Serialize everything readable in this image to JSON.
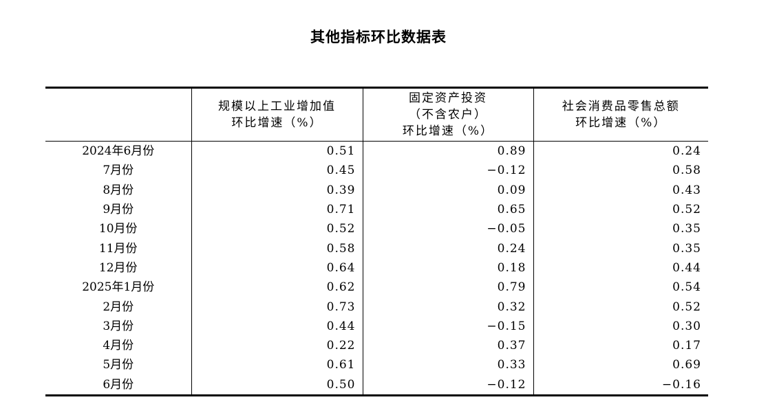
{
  "title": "其他指标环比数据表",
  "headers": [
    {
      "lines": [
        ""
      ]
    },
    {
      "lines": [
        "规模以上工业增加值",
        "环比增速（%）"
      ]
    },
    {
      "lines": [
        "固定资产投资",
        "（不含农户）",
        "环比增速（%）"
      ]
    },
    {
      "lines": [
        "社会消费品零售总额",
        "环比增速（%）"
      ]
    }
  ],
  "rows": [
    {
      "label": "2024年6月份",
      "industry": "0.51",
      "investment": "0.89",
      "retail": "0.24"
    },
    {
      "label": "7月份",
      "industry": "0.45",
      "investment": "−0.12",
      "retail": "0.58"
    },
    {
      "label": "8月份",
      "industry": "0.39",
      "investment": "0.09",
      "retail": "0.43"
    },
    {
      "label": "9月份",
      "industry": "0.71",
      "investment": "0.65",
      "retail": "0.52"
    },
    {
      "label": "10月份",
      "industry": "0.52",
      "investment": "−0.05",
      "retail": "0.35"
    },
    {
      "label": "11月份",
      "industry": "0.58",
      "investment": "0.24",
      "retail": "0.35"
    },
    {
      "label": "12月份",
      "industry": "0.64",
      "investment": "0.18",
      "retail": "0.44"
    },
    {
      "label": "2025年1月份",
      "industry": "0.62",
      "investment": "0.79",
      "retail": "0.54"
    },
    {
      "label": "2月份",
      "industry": "0.73",
      "investment": "0.32",
      "retail": "0.52"
    },
    {
      "label": "3月份",
      "industry": "0.44",
      "investment": "−0.15",
      "retail": "0.30"
    },
    {
      "label": "4月份",
      "industry": "0.22",
      "investment": "0.37",
      "retail": "0.17"
    },
    {
      "label": "5月份",
      "industry": "0.61",
      "investment": "0.33",
      "retail": "0.69"
    },
    {
      "label": "6月份",
      "industry": "0.50",
      "investment": "−0.12",
      "retail": "−0.16"
    }
  ]
}
